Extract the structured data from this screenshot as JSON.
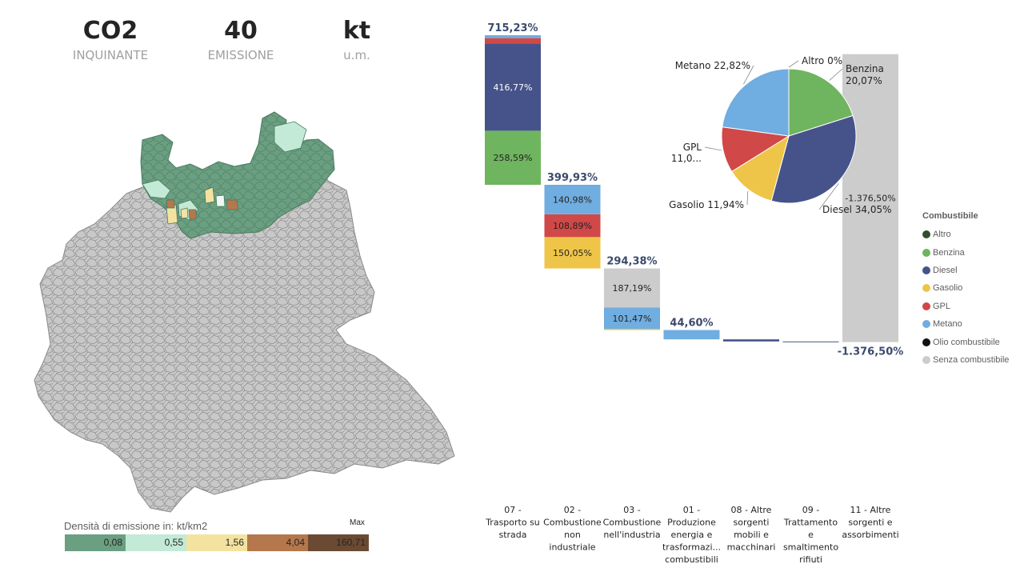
{
  "kpis": [
    {
      "value": "CO2",
      "label": "INQUINANTE"
    },
    {
      "value": "40",
      "label": "EMISSIONE"
    },
    {
      "value": "kt",
      "label": "u.m."
    }
  ],
  "map": {
    "legend_title": "Densità di emissione in: kt/km2",
    "legend_max_label": "Max",
    "legend": [
      {
        "value": "0,08",
        "color": "#6b9f82"
      },
      {
        "value": "0,55",
        "color": "#c3ead7"
      },
      {
        "value": "1,56",
        "color": "#f4e3a0"
      },
      {
        "value": "4,04",
        "color": "#b5784c"
      },
      {
        "value": "160,71",
        "color": "#6b4a33"
      }
    ],
    "region_color": "#c8c8c8",
    "highlight_color": "#6b9f82"
  },
  "fuel_legend": {
    "title": "Combustibile",
    "items": [
      {
        "name": "Altro",
        "color": "#2f4f2f"
      },
      {
        "name": "Benzina",
        "color": "#6fb45e"
      },
      {
        "name": "Diesel",
        "color": "#46538a"
      },
      {
        "name": "Gasolio",
        "color": "#eec548"
      },
      {
        "name": "GPL",
        "color": "#d04848"
      },
      {
        "name": "Metano",
        "color": "#70ade0"
      },
      {
        "name": "Olio combustibile",
        "color": "#111111"
      },
      {
        "name": "Senza combustibile",
        "color": "#cccccc"
      }
    ]
  },
  "chart_data": [
    {
      "type": "bar",
      "subtype": "waterfall-stacked",
      "categories": [
        "07 - Trasporto su strada",
        "02 - Combustione non industriale",
        "03 - Combustione nell'industria",
        "01 - Produzione energia e trasformazi... combustibili",
        "08 - Altre sorgenti mobili e macchinari",
        "09 - Trattamento e smaltimento rifiuti",
        "11 - Altre sorgenti e assorbimenti"
      ],
      "category_lines": [
        [
          "07 -",
          "Trasporto su",
          "strada"
        ],
        [
          "02 -",
          "Combustione",
          "non",
          "industriale"
        ],
        [
          "03 -",
          "Combustione",
          "nell'industria"
        ],
        [
          "01 -",
          "Produzione",
          "energia e",
          "trasformazi...",
          "combustibili"
        ],
        [
          "08 - Altre",
          "sorgenti",
          "mobili e",
          "macchinari"
        ],
        [
          "09 -",
          "Trattamento",
          "e",
          "smaltimento",
          "rifiuti"
        ],
        [
          "11 - Altre",
          "sorgenti e",
          "assorbimenti"
        ]
      ],
      "totals": [
        715.23,
        399.93,
        294.38,
        44.6,
        10.0,
        3.0,
        -1376.5
      ],
      "total_labels": [
        "715,23%",
        "399,93%",
        "294,38%",
        "44,60%",
        "",
        "",
        "-1.376,50%"
      ],
      "segments": [
        [
          {
            "fuel": "Benzina",
            "value": 258.59,
            "label": "258,59%"
          },
          {
            "fuel": "Diesel",
            "value": 416.77,
            "label": "416,77%"
          },
          {
            "fuel": "GPL",
            "value": 26.0,
            "label": ""
          },
          {
            "fuel": "Metano",
            "value": 13.87,
            "label": ""
          }
        ],
        [
          {
            "fuel": "Gasolio",
            "value": 150.05,
            "label": "150,05%"
          },
          {
            "fuel": "GPL",
            "value": 108.89,
            "label": "108,89%"
          },
          {
            "fuel": "Metano",
            "value": 140.98,
            "label": "140,98%"
          }
        ],
        [
          {
            "fuel": "Gasolio",
            "value": 5.72,
            "label": ""
          },
          {
            "fuel": "Metano",
            "value": 101.47,
            "label": "101,47%"
          },
          {
            "fuel": "Senza combustibile",
            "value": 187.19,
            "label": "187,19%"
          }
        ],
        [
          {
            "fuel": "Metano",
            "value": 44.6,
            "label": ""
          }
        ],
        [
          {
            "fuel": "Diesel",
            "value": 10.0,
            "label": ""
          }
        ],
        [
          {
            "fuel": "Diesel",
            "value": 3.0,
            "label": ""
          }
        ],
        [
          {
            "fuel": "Senza combustibile",
            "value": -1376.5,
            "label": "-1.376,50%"
          }
        ]
      ]
    },
    {
      "type": "pie",
      "slices": [
        {
          "name": "Altro",
          "value": 0.0,
          "label": "Altro 0%"
        },
        {
          "name": "Benzina",
          "value": 20.07,
          "label": "Benzina 20,07%"
        },
        {
          "name": "Diesel",
          "value": 34.05,
          "label": "Diesel 34,05%"
        },
        {
          "name": "Gasolio",
          "value": 11.94,
          "label": "Gasolio 11,94%"
        },
        {
          "name": "GPL",
          "value": 11.0,
          "label": "GPL 11,0..."
        },
        {
          "name": "Metano",
          "value": 22.82,
          "label": "Metano 22,82%"
        }
      ]
    }
  ]
}
